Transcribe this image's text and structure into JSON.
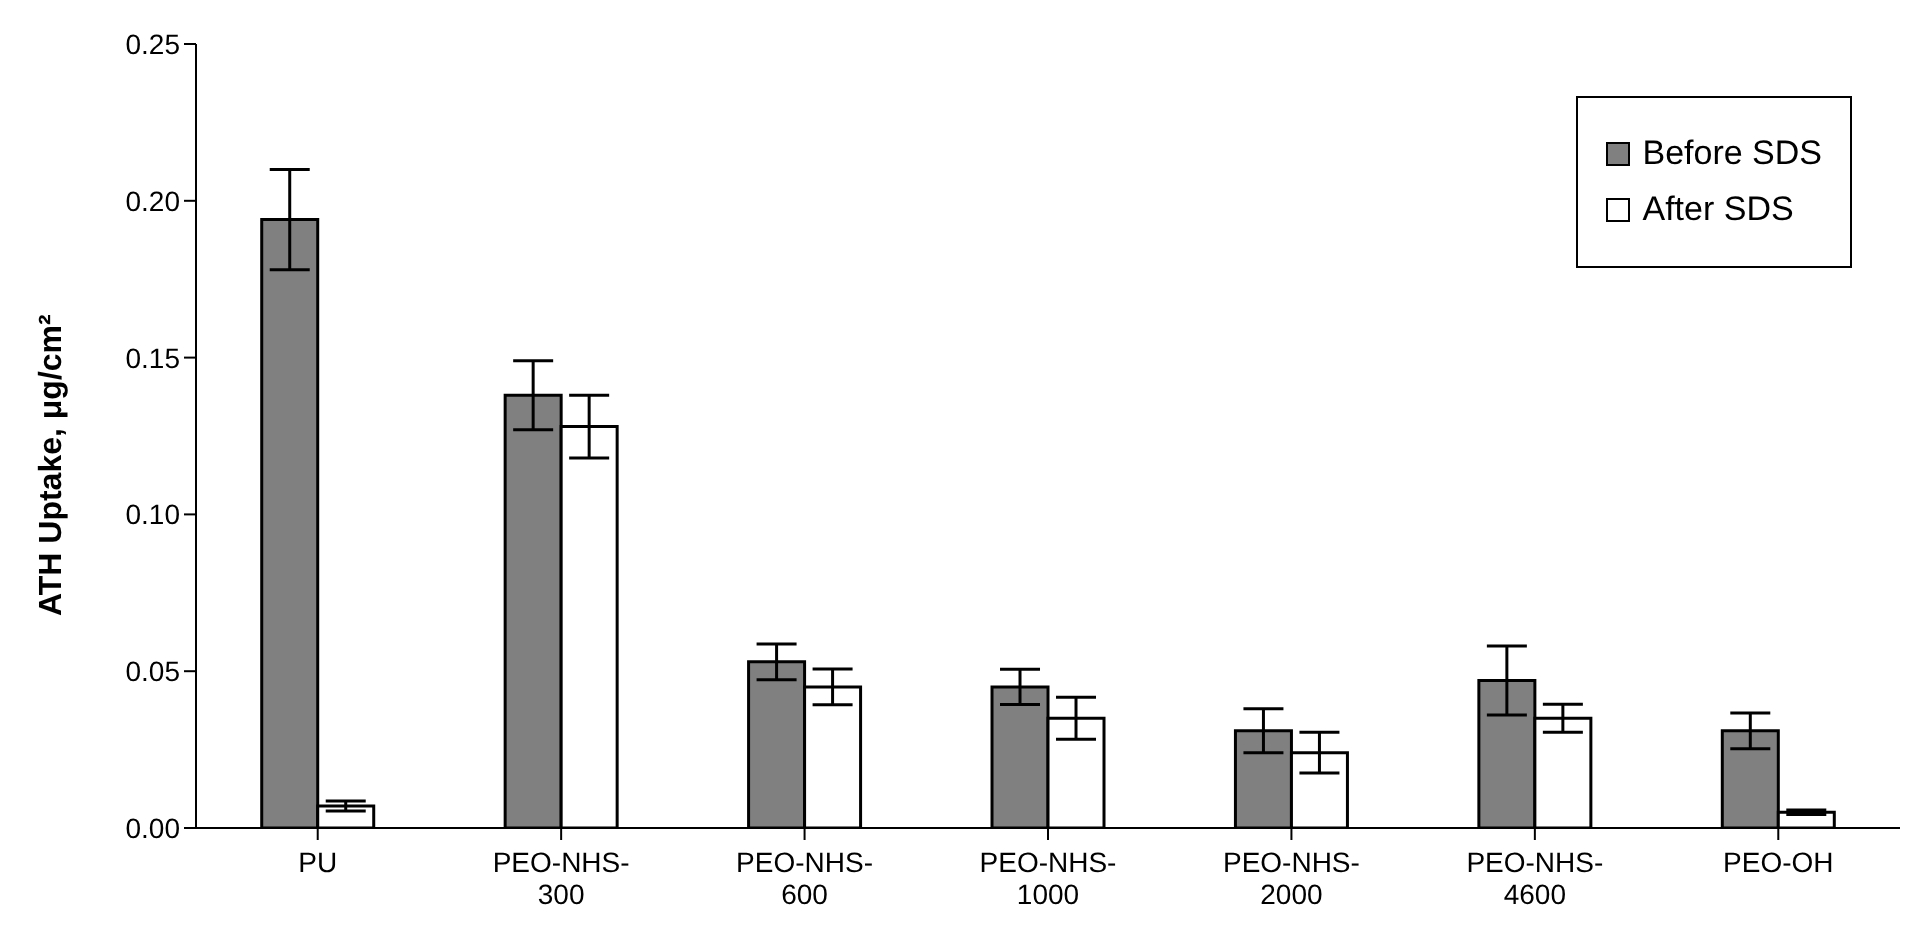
{
  "chart_data": {
    "type": "bar",
    "ylabel": "ATH Uptake, μg/cm²",
    "categories": [
      "PU",
      "PEO-NHS-300",
      "PEO-NHS-600",
      "PEO-NHS-1000",
      "PEO-NHS-2000",
      "PEO-NHS-4600",
      "PEO-OH"
    ],
    "series": [
      {
        "name": "Before SDS",
        "color": "#808080",
        "values": [
          0.194,
          0.138,
          0.053,
          0.045,
          0.031,
          0.047,
          0.031
        ],
        "errors": [
          0.016,
          0.011,
          0.0057,
          0.0056,
          0.007,
          0.011,
          0.0057
        ]
      },
      {
        "name": "After SDS",
        "color": "#ffffff",
        "values": [
          0.007,
          0.128,
          0.045,
          0.035,
          0.024,
          0.035,
          0.005
        ],
        "errors": [
          0.0016,
          0.01,
          0.0057,
          0.0067,
          0.0065,
          0.0045,
          0.0007
        ]
      }
    ],
    "ylim": [
      0,
      0.25
    ],
    "yticks": [
      {
        "value": 0,
        "label": "0.00"
      },
      0.05,
      {
        "value": 0.1,
        "label": "0.10"
      },
      0.15,
      {
        "value": 0.2,
        "label": "0.20"
      },
      0.25
    ],
    "legend": "top right"
  }
}
